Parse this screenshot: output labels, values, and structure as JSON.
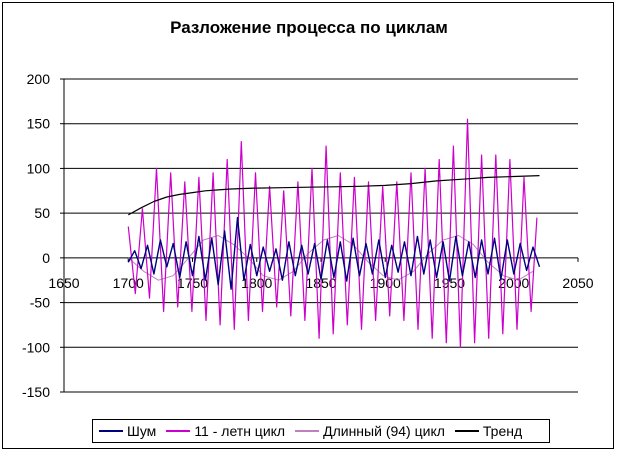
{
  "chart_data": {
    "type": "line",
    "title": "Разложение процесса по циклам",
    "xlabel": "",
    "ylabel": "",
    "xlim": [
      1650,
      2050
    ],
    "ylim": [
      -150,
      200
    ],
    "x_ticks": [
      1650,
      1700,
      1750,
      1800,
      1850,
      1900,
      1950,
      2000,
      2050
    ],
    "y_ticks": [
      -150,
      -100,
      -50,
      0,
      50,
      100,
      150,
      200
    ],
    "grid": "horizontal",
    "legend_position": "bottom",
    "series": [
      {
        "name": "Шум",
        "color": "#000080",
        "x": [
          1700,
          1705,
          1710,
          1715,
          1720,
          1725,
          1730,
          1735,
          1740,
          1745,
          1750,
          1755,
          1760,
          1765,
          1770,
          1775,
          1780,
          1785,
          1790,
          1795,
          1800,
          1805,
          1810,
          1815,
          1820,
          1825,
          1830,
          1835,
          1840,
          1845,
          1850,
          1855,
          1860,
          1865,
          1870,
          1875,
          1880,
          1885,
          1890,
          1895,
          1900,
          1905,
          1910,
          1915,
          1920,
          1925,
          1930,
          1935,
          1940,
          1945,
          1950,
          1955,
          1960,
          1965,
          1970,
          1975,
          1980,
          1985,
          1990,
          1995,
          2000,
          2005,
          2010,
          2015,
          2020
        ],
        "values": [
          -5,
          8,
          -12,
          14,
          -18,
          20,
          -10,
          16,
          -22,
          18,
          -20,
          24,
          -25,
          22,
          -30,
          30,
          -35,
          45,
          -25,
          15,
          -20,
          12,
          -15,
          10,
          -25,
          18,
          -20,
          14,
          -18,
          16,
          -24,
          20,
          -22,
          18,
          -26,
          22,
          -20,
          16,
          -18,
          20,
          -22,
          14,
          -16,
          18,
          -20,
          24,
          -18,
          20,
          -22,
          18,
          -26,
          24,
          -20,
          18,
          -22,
          20,
          -18,
          22,
          -24,
          20,
          -18,
          16,
          -14,
          12,
          -10
        ]
      },
      {
        "name": "11 - летн цикл",
        "color": "#CC00CC",
        "x": [
          1700,
          1705.5,
          1711,
          1716.5,
          1722,
          1727.5,
          1733,
          1738.5,
          1744,
          1749.5,
          1755,
          1760.5,
          1766,
          1771.5,
          1777,
          1782.5,
          1788,
          1793.5,
          1799,
          1804.5,
          1810,
          1815.5,
          1821,
          1826.5,
          1832,
          1837.5,
          1843,
          1848.5,
          1854,
          1859.5,
          1865,
          1870.5,
          1876,
          1881.5,
          1887,
          1892.5,
          1898,
          1903.5,
          1909,
          1914.5,
          1920,
          1925.5,
          1931,
          1936.5,
          1942,
          1947.5,
          1953,
          1958.5,
          1964,
          1969.5,
          1975,
          1980.5,
          1986,
          1991.5,
          1997,
          2002.5,
          2008,
          2013.5,
          2018
        ],
        "values": [
          35,
          -40,
          55,
          -45,
          100,
          -60,
          95,
          -55,
          85,
          -60,
          90,
          -70,
          95,
          -75,
          110,
          -80,
          130,
          -70,
          95,
          -60,
          80,
          -55,
          75,
          -65,
          85,
          -70,
          100,
          -90,
          125,
          -85,
          95,
          -75,
          90,
          -80,
          85,
          -70,
          80,
          -65,
          85,
          -70,
          95,
          -80,
          100,
          -90,
          110,
          -95,
          125,
          -100,
          155,
          -95,
          115,
          -90,
          115,
          -85,
          110,
          -80,
          90,
          -60,
          45
        ]
      },
      {
        "name": "Длинный (94) цикл",
        "color": "#C080C0",
        "x": [
          1700,
          1712,
          1723.5,
          1735,
          1747,
          1758.5,
          1770,
          1782,
          1793.5,
          1805,
          1817,
          1828.5,
          1840,
          1852,
          1863.5,
          1875,
          1887,
          1898.5,
          1910,
          1922,
          1933.5,
          1945,
          1957,
          1968.5,
          1980,
          1992,
          2003.5,
          2015
        ],
        "values": [
          0,
          -15,
          -25,
          -20,
          0,
          20,
          25,
          15,
          0,
          -20,
          -25,
          -15,
          5,
          20,
          25,
          15,
          -5,
          -20,
          -25,
          -15,
          5,
          20,
          25,
          15,
          -5,
          -20,
          -25,
          -15
        ]
      },
      {
        "name": "Тренд",
        "color": "#000000",
        "x": [
          1700,
          1710,
          1720,
          1730,
          1740,
          1750,
          1760,
          1770,
          1780,
          1790,
          1800,
          1820,
          1840,
          1860,
          1880,
          1900,
          1920,
          1940,
          1960,
          1980,
          2000,
          2020
        ],
        "values": [
          48,
          56,
          63,
          68,
          71,
          73,
          75,
          76,
          77,
          77.5,
          78,
          78.5,
          79,
          79.5,
          80,
          81,
          83,
          86,
          88,
          90,
          91,
          92
        ]
      }
    ]
  }
}
